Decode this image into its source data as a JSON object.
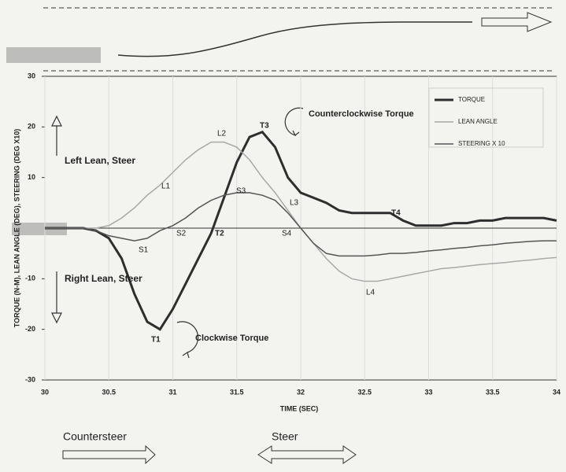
{
  "chart_data": {
    "type": "line",
    "x_label": "TIME (SEC)",
    "y_label": "TORQUE (N-M), LEAN ANGLE (DEG), STEERING (DEG X10)",
    "x": [
      30.0,
      30.1,
      30.2,
      30.3,
      30.4,
      30.5,
      30.6,
      30.7,
      30.8,
      30.9,
      31.0,
      31.1,
      31.2,
      31.3,
      31.4,
      31.5,
      31.6,
      31.7,
      31.8,
      31.9,
      32.0,
      32.1,
      32.2,
      32.3,
      32.4,
      32.5,
      32.6,
      32.7,
      32.8,
      32.9,
      33.0,
      33.1,
      33.2,
      33.3,
      33.4,
      33.5,
      33.6,
      33.7,
      33.8,
      33.9,
      34.0
    ],
    "series": [
      {
        "name": "TORQUE",
        "color": "#2e2e2e",
        "values": [
          0,
          0,
          0,
          0,
          -0.5,
          -2,
          -6,
          -13,
          -18.5,
          -20,
          -16,
          -11,
          -6,
          -1,
          6,
          13,
          18,
          19,
          16,
          10,
          7,
          6,
          5,
          3.5,
          3,
          3,
          3,
          3,
          1.5,
          0.5,
          0.5,
          0.5,
          1,
          1,
          1.5,
          1.5,
          2,
          2,
          2,
          2,
          1.5
        ]
      },
      {
        "name": "LEAN ANGLE",
        "color": "#a8a8a8",
        "values": [
          0,
          0,
          0,
          0,
          0,
          0.5,
          2,
          4,
          6.5,
          8.5,
          11,
          13.5,
          15.5,
          17,
          17,
          16,
          13.5,
          10,
          7,
          3.5,
          0,
          -3,
          -6,
          -8.5,
          -10,
          -10.5,
          -10.5,
          -10,
          -9.5,
          -9,
          -8.5,
          -8,
          -7.8,
          -7.5,
          -7.2,
          -7,
          -6.8,
          -6.5,
          -6.3,
          -6,
          -5.8
        ]
      },
      {
        "name": "STEERING X 10",
        "color": "#555555",
        "values": [
          0,
          0,
          0,
          0,
          -0.5,
          -1.5,
          -2,
          -2.5,
          -2,
          -0.5,
          0.5,
          2,
          4,
          5.5,
          6.5,
          7,
          7,
          6.5,
          5.5,
          3,
          0,
          -3,
          -5,
          -5.5,
          -5.5,
          -5.5,
          -5.3,
          -5,
          -5,
          -4.8,
          -4.5,
          -4.3,
          -4,
          -3.8,
          -3.5,
          -3.3,
          -3,
          -2.8,
          -2.6,
          -2.5,
          -2.5
        ]
      }
    ],
    "xlim": [
      30,
      34
    ],
    "xticks": [
      30,
      30.5,
      31,
      31.5,
      32,
      32.5,
      33,
      33.5,
      34
    ],
    "ylim": [
      -30,
      30
    ],
    "yticks": [
      -30,
      -20,
      -10,
      10,
      20,
      30
    ],
    "grid": true,
    "legend": "upper right",
    "annotations": [
      "Left Lean, Steer",
      "Right Lean, Steer",
      "Counterclockwise Torque",
      "Clockwise Torque",
      "L1",
      "L2",
      "L3",
      "L4",
      "S1",
      "S2",
      "S3",
      "S4",
      "T1",
      "T2",
      "T3",
      "T4",
      "Countersteer",
      "Steer"
    ]
  }
}
